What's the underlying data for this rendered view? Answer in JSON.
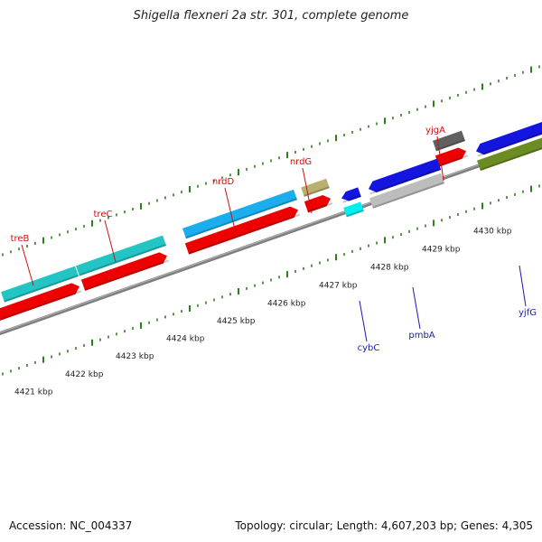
{
  "title": "Shigella flexneri 2a str. 301, complete genome",
  "footer": {
    "accession": "Accession: NC_004337",
    "summary": "Topology: circular; Length: 4,607,203 bp; Genes: 4,305"
  },
  "colors": {
    "backbone": "#8a8a8a",
    "tick": "#2e7d1f",
    "gene_label_forward": "#cc1111",
    "gene_label_reverse": "#1a1ab0",
    "cds_red": "#ee0000",
    "teal": "#22c4c4",
    "sky": "#1aaeee",
    "khaki": "#b8b070",
    "dark_gray": "#606060",
    "blue": "#1515e0",
    "cyan": "#00eeee",
    "light_gray": "#bdbdbd",
    "olive": "#6a8c22"
  },
  "kbp_labels": [
    "4421 kbp",
    "4422 kbp",
    "4423 kbp",
    "4424 kbp",
    "4425 kbp",
    "4426 kbp",
    "4427 kbp",
    "4428 kbp",
    "4429 kbp",
    "4430 kbp"
  ],
  "gene_labels": [
    {
      "name": "treB",
      "strand": "forward"
    },
    {
      "name": "treC",
      "strand": "forward"
    },
    {
      "name": "nrdD",
      "strand": "forward"
    },
    {
      "name": "nrdG",
      "strand": "forward"
    },
    {
      "name": "yjgA",
      "strand": "forward"
    },
    {
      "name": "cybC",
      "strand": "reverse"
    },
    {
      "name": "pmbA",
      "strand": "reverse"
    },
    {
      "name": "yjfG",
      "strand": "reverse"
    }
  ]
}
